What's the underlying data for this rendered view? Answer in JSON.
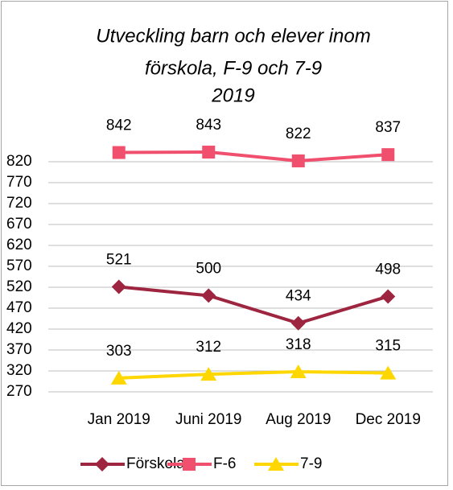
{
  "chart_data": {
    "type": "line",
    "title": [
      "Utveckling barn och elever inom",
      "förskola, F-9 och 7-9",
      "2019"
    ],
    "categories": [
      "Jan 2019",
      "Juni 2019",
      "Aug 2019",
      "Dec 2019"
    ],
    "series": [
      {
        "name": "Förskola",
        "color": "#9e2540",
        "marker": "diamond",
        "values": [
          521,
          500,
          434,
          498
        ]
      },
      {
        "name": "F-6",
        "color": "#f0506e",
        "marker": "square",
        "values": [
          842,
          843,
          822,
          837
        ]
      },
      {
        "name": "7-9",
        "color": "#ffd700",
        "marker": "triangle",
        "values": [
          303,
          312,
          318,
          315
        ]
      }
    ],
    "ylim": [
      270,
      820
    ],
    "yticks": [
      270,
      320,
      370,
      420,
      470,
      520,
      570,
      620,
      670,
      720,
      770,
      820
    ],
    "grid": true,
    "legend": "bottom"
  }
}
